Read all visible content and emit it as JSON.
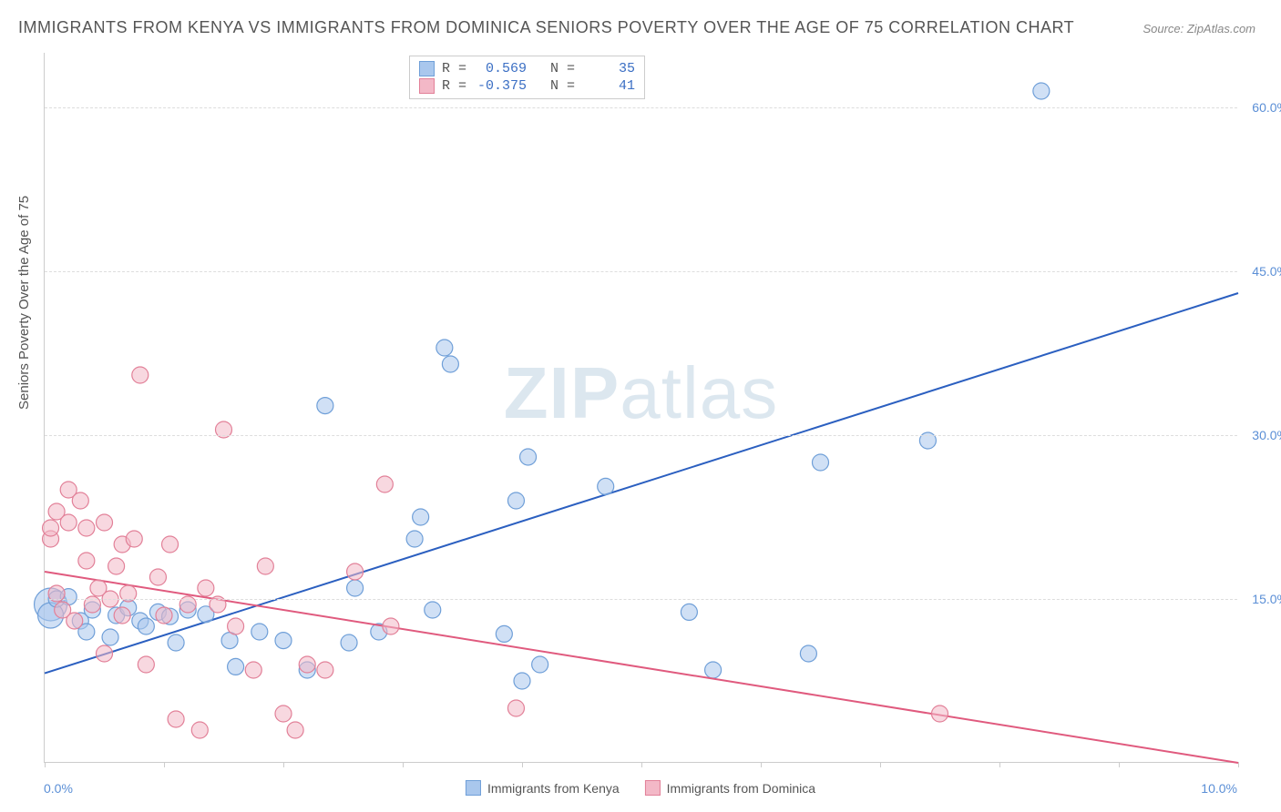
{
  "title": "IMMIGRANTS FROM KENYA VS IMMIGRANTS FROM DOMINICA SENIORS POVERTY OVER THE AGE OF 75 CORRELATION CHART",
  "source": "Source: ZipAtlas.com",
  "ylabel": "Seniors Poverty Over the Age of 75",
  "watermark_a": "ZIP",
  "watermark_b": "atlas",
  "chart": {
    "type": "scatter",
    "xlim": [
      0,
      10
    ],
    "ylim": [
      0,
      65
    ],
    "x_start_label": "0.0%",
    "x_end_label": "10.0%",
    "ytick_values": [
      15.0,
      30.0,
      45.0,
      60.0
    ],
    "ytick_labels": [
      "15.0%",
      "30.0%",
      "45.0%",
      "60.0%"
    ],
    "xtick_values": [
      0,
      1,
      2,
      3,
      4,
      5,
      6,
      7,
      8,
      9,
      10
    ],
    "grid_color": "#dddddd",
    "background_color": "#ffffff",
    "series": [
      {
        "name": "Immigrants from Kenya",
        "fill": "#a9c7ed",
        "stroke": "#6f9fd8",
        "fill_opacity": 0.55,
        "line_color": "#2b5fc0",
        "line_width": 2,
        "R": "0.569",
        "N": "35",
        "marker_radius": 9,
        "trend": {
          "x1": 0,
          "y1": 8.2,
          "x2": 10,
          "y2": 43.0
        },
        "points": [
          {
            "x": 0.05,
            "y": 14.5,
            "r": 18
          },
          {
            "x": 0.05,
            "y": 13.5,
            "r": 14
          },
          {
            "x": 0.1,
            "y": 15.0
          },
          {
            "x": 0.2,
            "y": 15.2
          },
          {
            "x": 0.3,
            "y": 13.0
          },
          {
            "x": 0.35,
            "y": 12.0
          },
          {
            "x": 0.4,
            "y": 14.0
          },
          {
            "x": 0.55,
            "y": 11.5
          },
          {
            "x": 0.6,
            "y": 13.5
          },
          {
            "x": 0.7,
            "y": 14.2
          },
          {
            "x": 0.8,
            "y": 13.0
          },
          {
            "x": 0.85,
            "y": 12.5
          },
          {
            "x": 0.95,
            "y": 13.8
          },
          {
            "x": 1.05,
            "y": 13.4
          },
          {
            "x": 1.1,
            "y": 11.0
          },
          {
            "x": 1.2,
            "y": 14.0
          },
          {
            "x": 1.35,
            "y": 13.6
          },
          {
            "x": 1.55,
            "y": 11.2
          },
          {
            "x": 1.6,
            "y": 8.8
          },
          {
            "x": 1.8,
            "y": 12.0
          },
          {
            "x": 2.0,
            "y": 11.2
          },
          {
            "x": 2.2,
            "y": 8.5
          },
          {
            "x": 2.35,
            "y": 32.7
          },
          {
            "x": 2.55,
            "y": 11.0
          },
          {
            "x": 2.6,
            "y": 16.0
          },
          {
            "x": 2.8,
            "y": 12.0
          },
          {
            "x": 3.1,
            "y": 20.5
          },
          {
            "x": 3.15,
            "y": 22.5
          },
          {
            "x": 3.25,
            "y": 14.0
          },
          {
            "x": 3.35,
            "y": 38.0
          },
          {
            "x": 3.4,
            "y": 36.5
          },
          {
            "x": 3.85,
            "y": 11.8
          },
          {
            "x": 4.0,
            "y": 7.5
          },
          {
            "x": 4.05,
            "y": 28.0
          },
          {
            "x": 4.15,
            "y": 9.0
          },
          {
            "x": 3.95,
            "y": 24.0
          },
          {
            "x": 4.7,
            "y": 25.3
          },
          {
            "x": 5.4,
            "y": 13.8
          },
          {
            "x": 5.6,
            "y": 8.5
          },
          {
            "x": 6.4,
            "y": 10.0
          },
          {
            "x": 6.5,
            "y": 27.5
          },
          {
            "x": 7.4,
            "y": 29.5
          },
          {
            "x": 8.35,
            "y": 61.5
          }
        ]
      },
      {
        "name": "Immigrants from Dominica",
        "fill": "#f3b8c7",
        "stroke": "#e28098",
        "fill_opacity": 0.55,
        "line_color": "#e05a7e",
        "line_width": 2,
        "R": "-0.375",
        "N": "41",
        "marker_radius": 9,
        "trend": {
          "x1": 0,
          "y1": 17.5,
          "x2": 10,
          "y2": 0.0
        },
        "points": [
          {
            "x": 0.05,
            "y": 20.5
          },
          {
            "x": 0.05,
            "y": 21.5
          },
          {
            "x": 0.1,
            "y": 23.0
          },
          {
            "x": 0.1,
            "y": 15.5
          },
          {
            "x": 0.15,
            "y": 14.0
          },
          {
            "x": 0.2,
            "y": 25.0
          },
          {
            "x": 0.2,
            "y": 22.0
          },
          {
            "x": 0.25,
            "y": 13.0
          },
          {
            "x": 0.3,
            "y": 24.0
          },
          {
            "x": 0.35,
            "y": 18.5
          },
          {
            "x": 0.35,
            "y": 21.5
          },
          {
            "x": 0.4,
            "y": 14.5
          },
          {
            "x": 0.45,
            "y": 16.0
          },
          {
            "x": 0.5,
            "y": 22.0
          },
          {
            "x": 0.5,
            "y": 10.0
          },
          {
            "x": 0.55,
            "y": 15.0
          },
          {
            "x": 0.6,
            "y": 18.0
          },
          {
            "x": 0.65,
            "y": 13.5
          },
          {
            "x": 0.65,
            "y": 20.0
          },
          {
            "x": 0.7,
            "y": 15.5
          },
          {
            "x": 0.75,
            "y": 20.5
          },
          {
            "x": 0.8,
            "y": 35.5
          },
          {
            "x": 0.85,
            "y": 9.0
          },
          {
            "x": 0.95,
            "y": 17.0
          },
          {
            "x": 1.0,
            "y": 13.5
          },
          {
            "x": 1.05,
            "y": 20.0
          },
          {
            "x": 1.1,
            "y": 4.0
          },
          {
            "x": 1.2,
            "y": 14.5
          },
          {
            "x": 1.3,
            "y": 3.0
          },
          {
            "x": 1.35,
            "y": 16.0
          },
          {
            "x": 1.45,
            "y": 14.5
          },
          {
            "x": 1.5,
            "y": 30.5
          },
          {
            "x": 1.6,
            "y": 12.5
          },
          {
            "x": 1.75,
            "y": 8.5
          },
          {
            "x": 1.85,
            "y": 18.0
          },
          {
            "x": 2.0,
            "y": 4.5
          },
          {
            "x": 2.1,
            "y": 3.0
          },
          {
            "x": 2.2,
            "y": 9.0
          },
          {
            "x": 2.35,
            "y": 8.5
          },
          {
            "x": 2.6,
            "y": 17.5
          },
          {
            "x": 2.85,
            "y": 25.5
          },
          {
            "x": 2.9,
            "y": 12.5
          },
          {
            "x": 3.95,
            "y": 5.0
          },
          {
            "x": 7.5,
            "y": 4.5
          }
        ]
      }
    ]
  },
  "legend": [
    {
      "label": "Immigrants from Kenya",
      "fill": "#a9c7ed",
      "stroke": "#6f9fd8"
    },
    {
      "label": "Immigrants from Dominica",
      "fill": "#f3b8c7",
      "stroke": "#e28098"
    }
  ]
}
